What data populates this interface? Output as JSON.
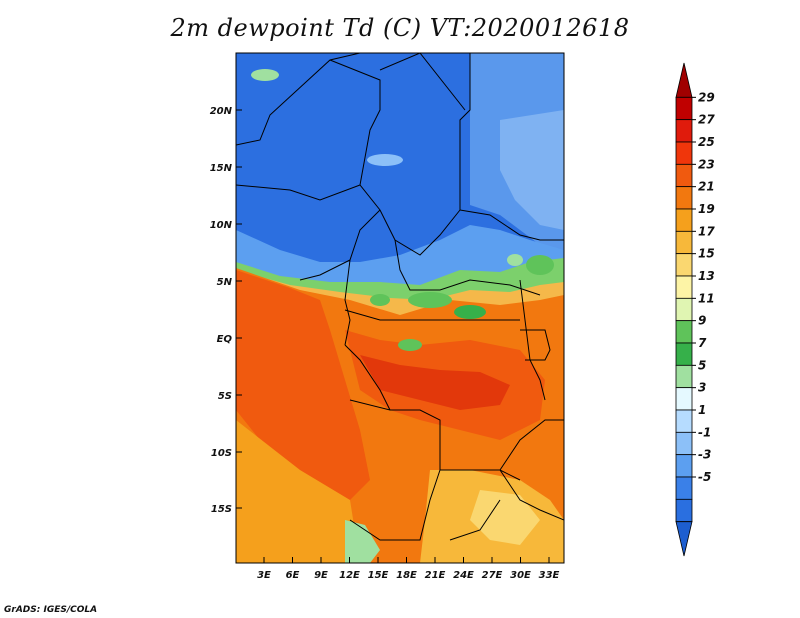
{
  "title": "2m dewpoint Td (C) VT:2020012618",
  "credit": "GrADS: IGES/COLA",
  "map": {
    "lat_ticks": [
      "20N",
      "15N",
      "10N",
      "5N",
      "EQ",
      "5S",
      "10S",
      "15S"
    ],
    "lon_ticks": [
      "3E",
      "6E",
      "9E",
      "12E",
      "15E",
      "18E",
      "21E",
      "24E",
      "27E",
      "30E",
      "33E"
    ]
  },
  "colorbar": {
    "labels": [
      "29",
      "27",
      "25",
      "23",
      "21",
      "19",
      "17",
      "15",
      "13",
      "11",
      "9",
      "7",
      "5",
      "3",
      "1",
      "-1",
      "-3",
      "-5"
    ],
    "colors": [
      "#a00000",
      "#c00000",
      "#e01b0c",
      "#f0360b",
      "#f05a0f",
      "#f2780f",
      "#f5a01c",
      "#f7b83a",
      "#fad770",
      "#fdf4a6",
      "#e0f5b2",
      "#5fc35a",
      "#36b04a",
      "#a0e0a0",
      "#e5f9ff",
      "#b6dcff",
      "#8cc0f8",
      "#5c9ff0",
      "#3a80e8",
      "#2a6fe0",
      "#1d5ed0"
    ]
  }
}
